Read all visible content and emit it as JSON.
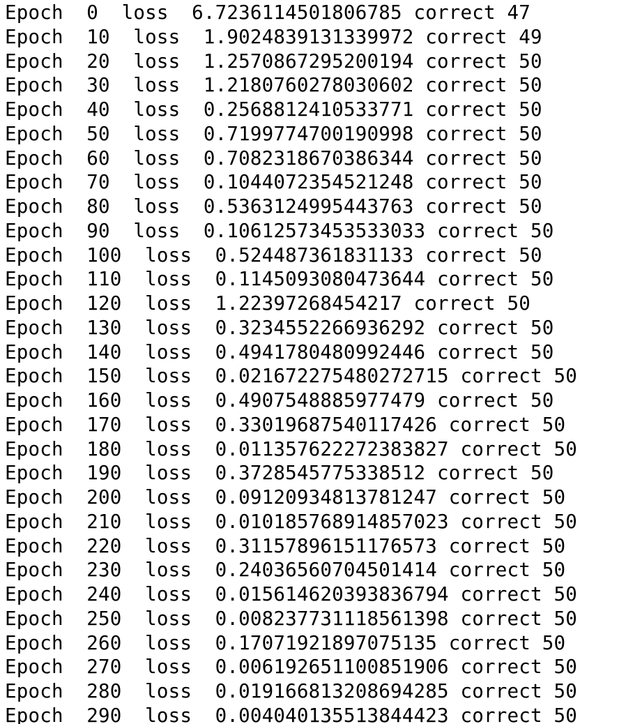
{
  "terminal": {
    "lines": [
      "Epoch  0  loss  6.7236114501806785 correct 47",
      "Epoch  10  loss  1.9024839131339972 correct 49",
      "Epoch  20  loss  1.2570867295200194 correct 50",
      "Epoch  30  loss  1.2180760278030602 correct 50",
      "Epoch  40  loss  0.2568812410533771 correct 50",
      "Epoch  50  loss  0.7199774700190998 correct 50",
      "Epoch  60  loss  0.7082318670386344 correct 50",
      "Epoch  70  loss  0.1044072354521248 correct 50",
      "Epoch  80  loss  0.5363124995443763 correct 50",
      "Epoch  90  loss  0.10612573453533033 correct 50",
      "Epoch  100  loss  0.524487361831133 correct 50",
      "Epoch  110  loss  0.1145093080473644 correct 50",
      "Epoch  120  loss  1.22397268454217 correct 50",
      "Epoch  130  loss  0.3234552266936292 correct 50",
      "Epoch  140  loss  0.4941780480992446 correct 50",
      "Epoch  150  loss  0.021672275480272715 correct 50",
      "Epoch  160  loss  0.4907548885977479 correct 50",
      "Epoch  170  loss  0.33019687540117426 correct 50",
      "Epoch  180  loss  0.011357622272383827 correct 50",
      "Epoch  190  loss  0.3728545775338512 correct 50",
      "Epoch  200  loss  0.09120934813781247 correct 50",
      "Epoch  210  loss  0.010185768914857023 correct 50",
      "Epoch  220  loss  0.31157896151176573 correct 50",
      "Epoch  230  loss  0.24036560704501414 correct 50",
      "Epoch  240  loss  0.015614620393836794 correct 50",
      "Epoch  250  loss  0.008237731118561398 correct 50",
      "Epoch  260  loss  0.17071921897075135 correct 50",
      "Epoch  270  loss  0.006192651100851906 correct 50",
      "Epoch  280  loss  0.019166813208694285 correct 50",
      "Epoch  290  loss  0.004040135513844423 correct 50"
    ]
  }
}
